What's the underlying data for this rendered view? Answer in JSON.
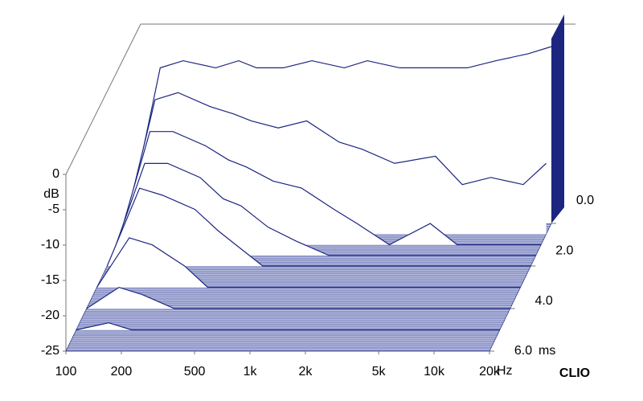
{
  "chart_data": {
    "type": "waterfall",
    "x_label": "Hz",
    "y_label": "dB",
    "z_label": "ms",
    "watermark": "CLIO",
    "xlog": true,
    "color": "#1c2580",
    "floor_color": "#8f96c8",
    "xlim": [
      100,
      20000
    ],
    "ylim": [
      -25,
      0
    ],
    "zlim": [
      0,
      6
    ],
    "xticks": [
      100,
      200,
      500,
      {
        "value": 1000,
        "label": "1k"
      },
      {
        "value": 2000,
        "label": "2k"
      },
      {
        "value": 5000,
        "label": "5k"
      },
      {
        "value": 10000,
        "label": "10k"
      },
      {
        "value": 20000,
        "label": "20k"
      }
    ],
    "yticks": [
      0,
      -5,
      -10,
      -15,
      -20,
      -25
    ],
    "zticks": [
      {
        "value": 0,
        "label": "0.0"
      },
      {
        "value": 2,
        "label": "2.0"
      },
      {
        "value": 4,
        "label": "4.0"
      },
      {
        "value": 6,
        "label": "6.0"
      }
    ],
    "x": [
      100,
      150,
      200,
      300,
      400,
      500,
      700,
      1000,
      1500,
      2000,
      3000,
      5000,
      7000,
      10000,
      15000,
      20000
    ],
    "z": [
      0,
      0.5,
      1,
      1.5,
      2,
      3,
      4,
      5
    ],
    "series": [
      {
        "values": [
          -25,
          -3,
          -2,
          -3,
          -2,
          -3,
          -3,
          -2,
          -3,
          -2,
          -3,
          -3,
          -3,
          -2,
          -1,
          0
        ]
      },
      {
        "values": [
          -25,
          -6,
          -5,
          -7,
          -8,
          -9,
          -10,
          -9,
          -12,
          -13,
          -15,
          -14,
          -18,
          -17,
          -18,
          -15
        ]
      },
      {
        "values": [
          -25,
          -9,
          -9,
          -11,
          -13,
          -14,
          -16,
          -17,
          -20,
          -22,
          -25,
          -22,
          -25,
          -25,
          -25,
          -25
        ]
      },
      {
        "values": [
          -25,
          -12,
          -12,
          -14,
          -17,
          -18,
          -21,
          -23,
          -25,
          -25,
          -25,
          -25,
          -25,
          -25,
          -25,
          -25
        ]
      },
      {
        "values": [
          -25,
          -14,
          -15,
          -17,
          -20,
          -22,
          -25,
          -25,
          -25,
          -25,
          -25,
          -25,
          -25,
          -25,
          -25,
          -25
        ]
      },
      {
        "values": [
          -25,
          -18,
          -19,
          -22,
          -25,
          -25,
          -25,
          -25,
          -25,
          -25,
          -25,
          -25,
          -25,
          -25,
          -25,
          -25
        ]
      },
      {
        "values": [
          -25,
          -22,
          -23,
          -25,
          -25,
          -25,
          -25,
          -25,
          -25,
          -25,
          -25,
          -25,
          -25,
          -25,
          -25,
          -25
        ]
      },
      {
        "values": [
          -25,
          -24,
          -25,
          -25,
          -25,
          -25,
          -25,
          -25,
          -25,
          -25,
          -25,
          -25,
          -25,
          -25,
          -25,
          -25
        ]
      }
    ]
  }
}
